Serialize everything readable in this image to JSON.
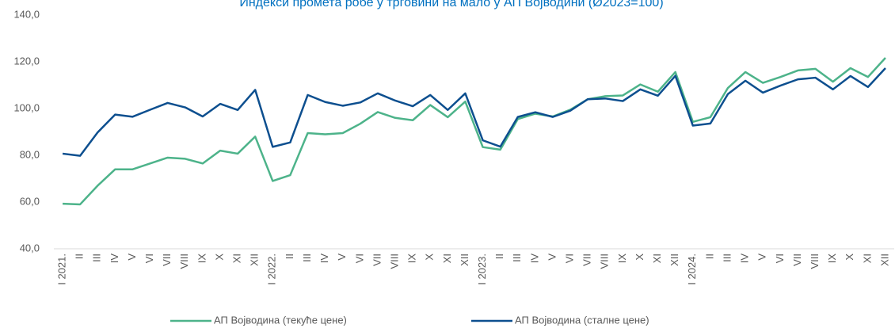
{
  "chart_data": {
    "type": "line",
    "title": "Индекси промета робе у трговини на мало у АП Војводини (Ø2023=100)",
    "categories": [
      "I 2021.",
      "II",
      "III",
      "IV",
      "V",
      "VI",
      "VII",
      "VIII",
      "IX",
      "X",
      "XI",
      "XII",
      "I 2022.",
      "II",
      "III",
      "IV",
      "V",
      "VI",
      "VII",
      "VIII",
      "IX",
      "X",
      "XI",
      "XII",
      "I 2023.",
      "II",
      "III",
      "IV",
      "V",
      "VI",
      "VII",
      "VIII",
      "IX",
      "X",
      "XI",
      "XII",
      "I 2024.",
      "II",
      "III",
      "IV",
      "V",
      "VI",
      "VII",
      "VIII",
      "IX",
      "X",
      "XI",
      "XII"
    ],
    "series": [
      {
        "name": "АП Војводина (текуће цене)",
        "color": "#4db38a",
        "values": [
          59.3,
          59,
          67,
          74,
          74,
          76.5,
          79,
          78.5,
          76.5,
          82,
          80.7,
          88,
          69,
          71.5,
          89.5,
          89,
          89.5,
          93.5,
          98.5,
          96,
          95,
          101.5,
          96.3,
          103,
          83.5,
          82.4,
          95.5,
          97.8,
          96.6,
          99.5,
          104,
          105.3,
          105.6,
          110.3,
          107.2,
          115.6,
          94.3,
          96.3,
          108.8,
          115.6,
          111,
          113.5,
          116.3,
          117,
          111.5,
          117.3,
          113.5,
          121.7
        ]
      },
      {
        "name": "АП Војводина (сталне цене)",
        "color": "#0d4f8f",
        "values": [
          80.7,
          79.8,
          89.8,
          97.4,
          96.5,
          99.5,
          102.4,
          100.5,
          96.6,
          102,
          99.4,
          108,
          83.6,
          85.5,
          105.8,
          102.8,
          101.2,
          102.6,
          106.5,
          103.4,
          101,
          105.8,
          99.4,
          106.5,
          86.4,
          83.7,
          96.4,
          98.4,
          96.4,
          99.1,
          104,
          104.3,
          103.2,
          108.2,
          105.5,
          114,
          92.7,
          93.6,
          106.2,
          111.9,
          106.8,
          109.8,
          112.5,
          113.2,
          108.2,
          113.9,
          109.2,
          117.3
        ]
      }
    ],
    "ylim": [
      40,
      140
    ],
    "yticks": [
      {
        "value": 40,
        "label": "40,0"
      },
      {
        "value": 60,
        "label": "60,0"
      },
      {
        "value": 80,
        "label": "80,0"
      },
      {
        "value": 100,
        "label": "100,0"
      },
      {
        "value": 120,
        "label": "120,0"
      },
      {
        "value": 140,
        "label": "140,0"
      }
    ],
    "grid": false,
    "legend": "bottom"
  }
}
